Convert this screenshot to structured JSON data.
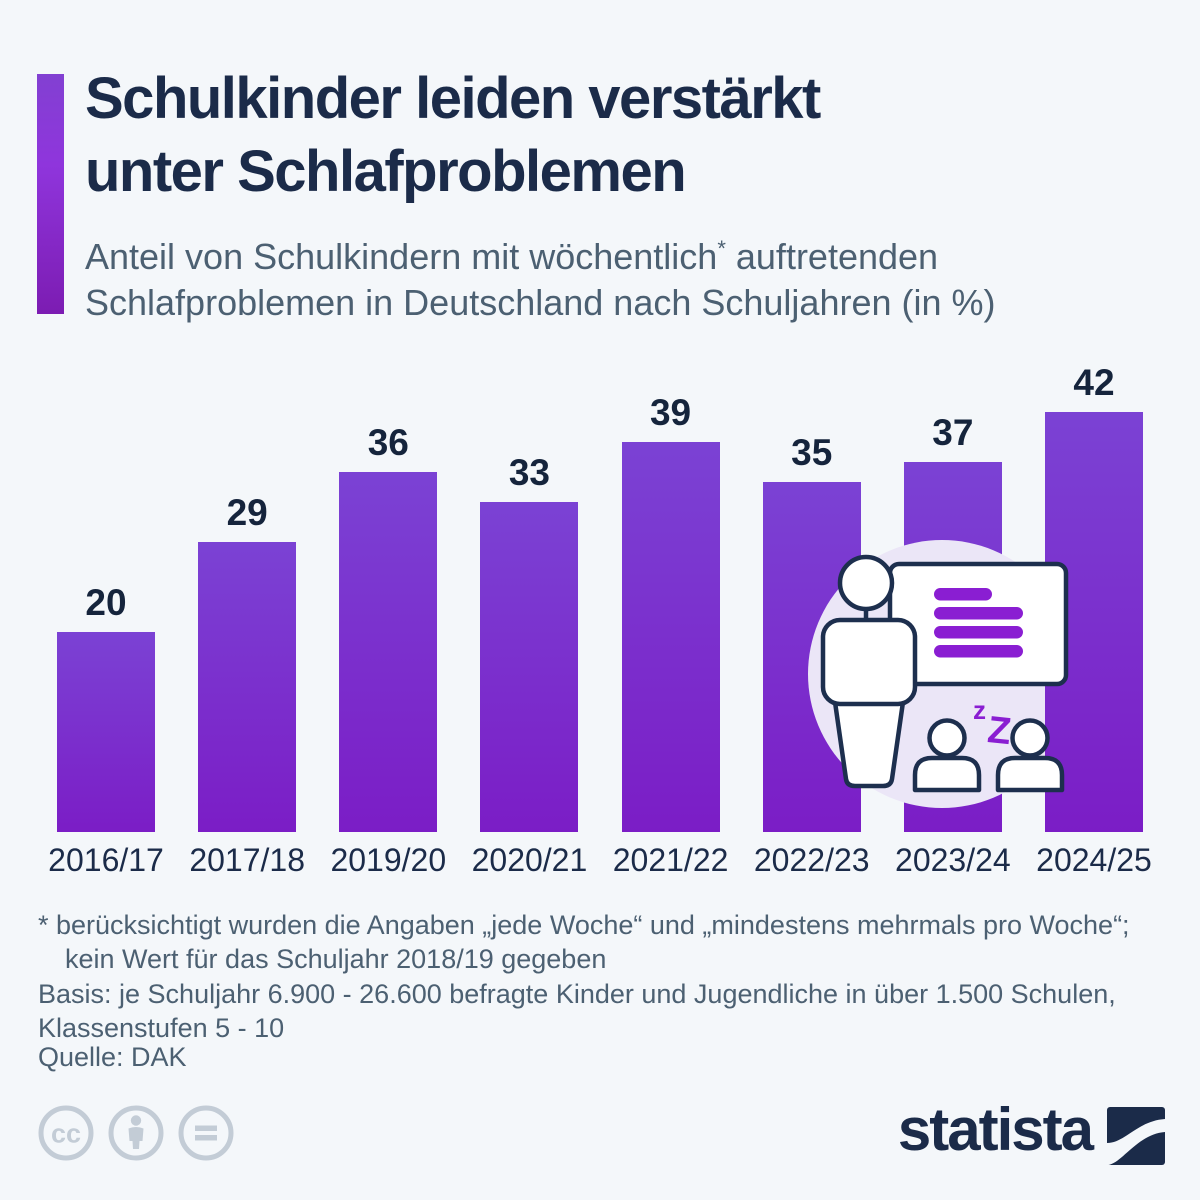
{
  "header": {
    "title_line1": "Schulkinder leiden verstärkt",
    "title_line2": "unter Schlafproblemen",
    "subtitle": {
      "line1_pre": "Anteil von Schulkindern mit wöchentlich",
      "asterisk": "*",
      "line1_post": " auftretenden",
      "line2": "Schlafproblemen in Deutschland nach Schuljahren (in %)"
    }
  },
  "chart_data": {
    "type": "bar",
    "title": "Schulkinder leiden verstärkt unter Schlafproblemen",
    "subtitle": "Anteil von Schulkindern mit wöchentlich* auftretenden Schlafproblemen in Deutschland nach Schuljahren (in %)",
    "categories": [
      "2016/17",
      "2017/18",
      "2019/20",
      "2020/21",
      "2021/22",
      "2022/23",
      "2023/24",
      "2024/25"
    ],
    "values": [
      20,
      29,
      36,
      33,
      39,
      35,
      37,
      42
    ],
    "unit": "%",
    "xlabel": "",
    "ylabel": "",
    "ylim": [
      0,
      47
    ],
    "grid": false,
    "legend": null,
    "bar_labels_shown": true
  },
  "footnotes": {
    "lines": [
      "* berücksichtigt wurden die Angaben „jede Woche“ und „mindestens mehrmals pro Woche“;",
      "kein Wert für das Schuljahr 2018/19 gegeben",
      "Basis: je Schuljahr 6.900 - 26.600 befragte Kinder und Jugendliche in über 1.500 Schulen,",
      "Klassenstufen 5 - 10"
    ],
    "source": "Quelle: DAK"
  },
  "branding": {
    "logo_text": "statista",
    "license_icons": [
      "cc-icon",
      "attribution-icon",
      "no-derivatives-icon"
    ]
  },
  "illustration": {
    "description": "teacher presenting at a whiteboard to two sleeping students",
    "zzz_small": "z",
    "zzz_big": "Z"
  },
  "colors": {
    "background": "#f4f7fa",
    "title": "#1b2b49",
    "subtitle": "#4c6072",
    "bar_gradient_top": "#7b42d4",
    "bar_gradient_bottom": "#7b1dc6",
    "accent_gradient_top": "#8240d2",
    "accent_gradient_bottom": "#7c1cb2",
    "illustration_purple": "#8a1ed2",
    "illustration_outline": "#1d2f4e",
    "illustration_circle": "#ebe6f7",
    "license_gray": "#c3ccd6"
  }
}
